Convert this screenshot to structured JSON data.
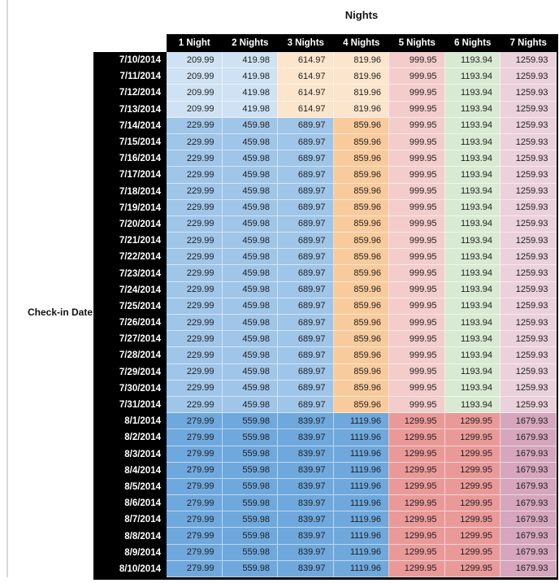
{
  "title": "Nights",
  "row_axis_label": "Check-in Date",
  "colors": {
    "header_bg": "#000000",
    "header_text": "#ffffff",
    "gridline": "#d9d9d9",
    "cell_text": "#1f1f1f",
    "table_border": "#000000",
    "blue_light": "#CFE2F3",
    "blue_medium": "#9FC5E8",
    "blue_dark": "#6FA8DC",
    "orange_light": "#FCE5CD",
    "orange_medium": "#F9CB9C",
    "red_light": "#F4CCCC",
    "red_medium": "#EA9999",
    "green_light": "#D9EAD3",
    "magenta_light": "#EAD1DC",
    "magenta_medium": "#D5A6BD"
  },
  "chart_data": {
    "type": "table",
    "title": "Nights",
    "row_header_label": "Check-in Date",
    "columns": [
      "1 Night",
      "2 Nights",
      "3 Nights",
      "4 Nights",
      "5 Nights",
      "6 Nights",
      "7 Nights"
    ],
    "groups": [
      {
        "cell_colors": [
          "blue_light",
          "blue_light",
          "orange_light",
          "orange_light",
          "red_light",
          "green_light",
          "magenta_light"
        ]
      },
      {
        "cell_colors": [
          "blue_medium",
          "blue_medium",
          "blue_medium",
          "orange_medium",
          "red_light",
          "green_light",
          "magenta_light"
        ]
      },
      {
        "cell_colors": [
          "blue_dark",
          "blue_dark",
          "blue_dark",
          "blue_dark",
          "red_medium",
          "red_medium",
          "magenta_medium"
        ]
      }
    ],
    "rows": [
      {
        "date": "7/10/2014",
        "group": 0,
        "values": [
          209.99,
          419.98,
          614.97,
          819.96,
          999.95,
          1193.94,
          1259.93
        ]
      },
      {
        "date": "7/11/2014",
        "group": 0,
        "values": [
          209.99,
          419.98,
          614.97,
          819.96,
          999.95,
          1193.94,
          1259.93
        ]
      },
      {
        "date": "7/12/2014",
        "group": 0,
        "values": [
          209.99,
          419.98,
          614.97,
          819.96,
          999.95,
          1193.94,
          1259.93
        ]
      },
      {
        "date": "7/13/2014",
        "group": 0,
        "values": [
          209.99,
          419.98,
          614.97,
          819.96,
          999.95,
          1193.94,
          1259.93
        ]
      },
      {
        "date": "7/14/2014",
        "group": 1,
        "values": [
          229.99,
          459.98,
          689.97,
          859.96,
          999.95,
          1193.94,
          1259.93
        ]
      },
      {
        "date": "7/15/2014",
        "group": 1,
        "values": [
          229.99,
          459.98,
          689.97,
          859.96,
          999.95,
          1193.94,
          1259.93
        ]
      },
      {
        "date": "7/16/2014",
        "group": 1,
        "values": [
          229.99,
          459.98,
          689.97,
          859.96,
          999.95,
          1193.94,
          1259.93
        ]
      },
      {
        "date": "7/17/2014",
        "group": 1,
        "values": [
          229.99,
          459.98,
          689.97,
          859.96,
          999.95,
          1193.94,
          1259.93
        ]
      },
      {
        "date": "7/18/2014",
        "group": 1,
        "values": [
          229.99,
          459.98,
          689.97,
          859.96,
          999.95,
          1193.94,
          1259.93
        ]
      },
      {
        "date": "7/19/2014",
        "group": 1,
        "values": [
          229.99,
          459.98,
          689.97,
          859.96,
          999.95,
          1193.94,
          1259.93
        ]
      },
      {
        "date": "7/20/2014",
        "group": 1,
        "values": [
          229.99,
          459.98,
          689.97,
          859.96,
          999.95,
          1193.94,
          1259.93
        ]
      },
      {
        "date": "7/21/2014",
        "group": 1,
        "values": [
          229.99,
          459.98,
          689.97,
          859.96,
          999.95,
          1193.94,
          1259.93
        ]
      },
      {
        "date": "7/22/2014",
        "group": 1,
        "values": [
          229.99,
          459.98,
          689.97,
          859.96,
          999.95,
          1193.94,
          1259.93
        ]
      },
      {
        "date": "7/23/2014",
        "group": 1,
        "values": [
          229.99,
          459.98,
          689.97,
          859.96,
          999.95,
          1193.94,
          1259.93
        ]
      },
      {
        "date": "7/24/2014",
        "group": 1,
        "values": [
          229.99,
          459.98,
          689.97,
          859.96,
          999.95,
          1193.94,
          1259.93
        ]
      },
      {
        "date": "7/25/2014",
        "group": 1,
        "values": [
          229.99,
          459.98,
          689.97,
          859.96,
          999.95,
          1193.94,
          1259.93
        ]
      },
      {
        "date": "7/26/2014",
        "group": 1,
        "values": [
          229.99,
          459.98,
          689.97,
          859.96,
          999.95,
          1193.94,
          1259.93
        ]
      },
      {
        "date": "7/27/2014",
        "group": 1,
        "values": [
          229.99,
          459.98,
          689.97,
          859.96,
          999.95,
          1193.94,
          1259.93
        ]
      },
      {
        "date": "7/28/2014",
        "group": 1,
        "values": [
          229.99,
          459.98,
          689.97,
          859.96,
          999.95,
          1193.94,
          1259.93
        ]
      },
      {
        "date": "7/29/2014",
        "group": 1,
        "values": [
          229.99,
          459.98,
          689.97,
          859.96,
          999.95,
          1193.94,
          1259.93
        ]
      },
      {
        "date": "7/30/2014",
        "group": 1,
        "values": [
          229.99,
          459.98,
          689.97,
          859.96,
          999.95,
          1193.94,
          1259.93
        ]
      },
      {
        "date": "7/31/2014",
        "group": 1,
        "values": [
          229.99,
          459.98,
          689.97,
          859.96,
          999.95,
          1193.94,
          1259.93
        ]
      },
      {
        "date": "8/1/2014",
        "group": 2,
        "values": [
          279.99,
          559.98,
          839.97,
          1119.96,
          1299.95,
          1299.95,
          1679.93
        ]
      },
      {
        "date": "8/2/2014",
        "group": 2,
        "values": [
          279.99,
          559.98,
          839.97,
          1119.96,
          1299.95,
          1299.95,
          1679.93
        ]
      },
      {
        "date": "8/3/2014",
        "group": 2,
        "values": [
          279.99,
          559.98,
          839.97,
          1119.96,
          1299.95,
          1299.95,
          1679.93
        ]
      },
      {
        "date": "8/4/2014",
        "group": 2,
        "values": [
          279.99,
          559.98,
          839.97,
          1119.96,
          1299.95,
          1299.95,
          1679.93
        ]
      },
      {
        "date": "8/5/2014",
        "group": 2,
        "values": [
          279.99,
          559.98,
          839.97,
          1119.96,
          1299.95,
          1299.95,
          1679.93
        ]
      },
      {
        "date": "8/6/2014",
        "group": 2,
        "values": [
          279.99,
          559.98,
          839.97,
          1119.96,
          1299.95,
          1299.95,
          1679.93
        ]
      },
      {
        "date": "8/7/2014",
        "group": 2,
        "values": [
          279.99,
          559.98,
          839.97,
          1119.96,
          1299.95,
          1299.95,
          1679.93
        ]
      },
      {
        "date": "8/8/2014",
        "group": 2,
        "values": [
          279.99,
          559.98,
          839.97,
          1119.96,
          1299.95,
          1299.95,
          1679.93
        ]
      },
      {
        "date": "8/9/2014",
        "group": 2,
        "values": [
          279.99,
          559.98,
          839.97,
          1119.96,
          1299.95,
          1299.95,
          1679.93
        ]
      },
      {
        "date": "8/10/2014",
        "group": 2,
        "values": [
          279.99,
          559.98,
          839.97,
          1119.96,
          1299.95,
          1299.95,
          1679.93
        ]
      }
    ]
  }
}
